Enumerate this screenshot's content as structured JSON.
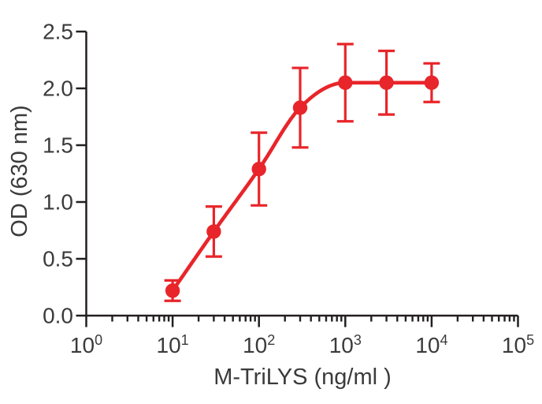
{
  "chart_data": {
    "type": "scatter",
    "subtype": "dose-response-curve-with-error-bars",
    "title": "",
    "x_axis": {
      "label": "M-TriLYS (ng/ml )",
      "scale": "log10",
      "min_exponent": 0,
      "max_exponent": 5,
      "tick_base": "10",
      "tick_exponents": [
        0,
        1,
        2,
        3,
        4,
        5
      ],
      "minor_ticks_per_decade": [
        2,
        3,
        4,
        5,
        6,
        7,
        8,
        9
      ]
    },
    "y_axis": {
      "label": "OD (630 nm)",
      "min": 0,
      "max": 2.5,
      "tick_labels": [
        "0.0",
        "0.5",
        "1.0",
        "1.5",
        "2.0",
        "2.5"
      ]
    },
    "grid": false,
    "legend": null,
    "series": [
      {
        "name": "M-TriLYS",
        "marker": "circle",
        "line": "smooth-fit",
        "color": "#e8252a",
        "x": [
          10,
          30,
          100,
          300,
          1000,
          3000,
          10000
        ],
        "y": [
          0.22,
          0.74,
          1.29,
          1.83,
          2.05,
          2.05,
          2.05
        ],
        "yerr": [
          0.09,
          0.22,
          0.32,
          0.35,
          0.34,
          0.28,
          0.17
        ]
      }
    ]
  },
  "colors": {
    "accent": "#e8252a",
    "axis": "#231f20",
    "text": "#3b3b3d",
    "background": "#ffffff"
  }
}
